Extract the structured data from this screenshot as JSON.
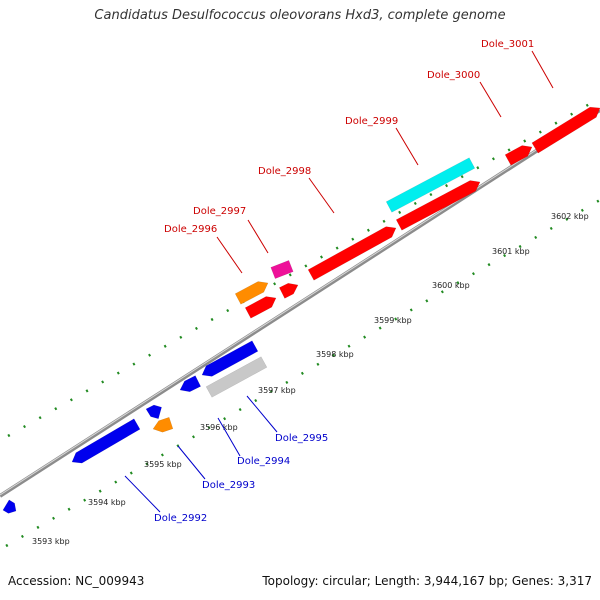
{
  "title": "Candidatus Desulfococcus oleovorans Hxd3, complete genome",
  "footer": {
    "accession": "Accession: NC_009943",
    "summary": "Topology: circular; Length: 3,944,167 bp; Genes: 3,317"
  },
  "colors": {
    "forward_label": "#cc0000",
    "reverse_label": "#0000cc",
    "red_gene": "#ff0000",
    "blue_gene": "#0000ee",
    "orange_gene": "#ff8c00",
    "magenta_gene": "#ee1199",
    "cyan_gene": "#00eeee",
    "gray_gene": "#c8c8c8",
    "backbone": "#8c8c8c",
    "tick": "#228b22"
  },
  "kbp_labels": [
    "3593 kbp",
    "3594 kbp",
    "3595 kbp",
    "3596 kbp",
    "3597 kbp",
    "3598 kbp",
    "3599 kbp",
    "3600 kbp",
    "3601 kbp",
    "3602 kbp"
  ],
  "gene_labels": [
    {
      "text": "Dole_2992",
      "strand": "reverse"
    },
    {
      "text": "Dole_2993",
      "strand": "reverse"
    },
    {
      "text": "Dole_2994",
      "strand": "reverse"
    },
    {
      "text": "Dole_2995",
      "strand": "reverse"
    },
    {
      "text": "Dole_2996",
      "strand": "forward"
    },
    {
      "text": "Dole_2997",
      "strand": "forward"
    },
    {
      "text": "Dole_2998",
      "strand": "forward"
    },
    {
      "text": "Dole_2999",
      "strand": "forward"
    },
    {
      "text": "Dole_3000",
      "strand": "forward"
    },
    {
      "text": "Dole_3001",
      "strand": "forward"
    }
  ]
}
